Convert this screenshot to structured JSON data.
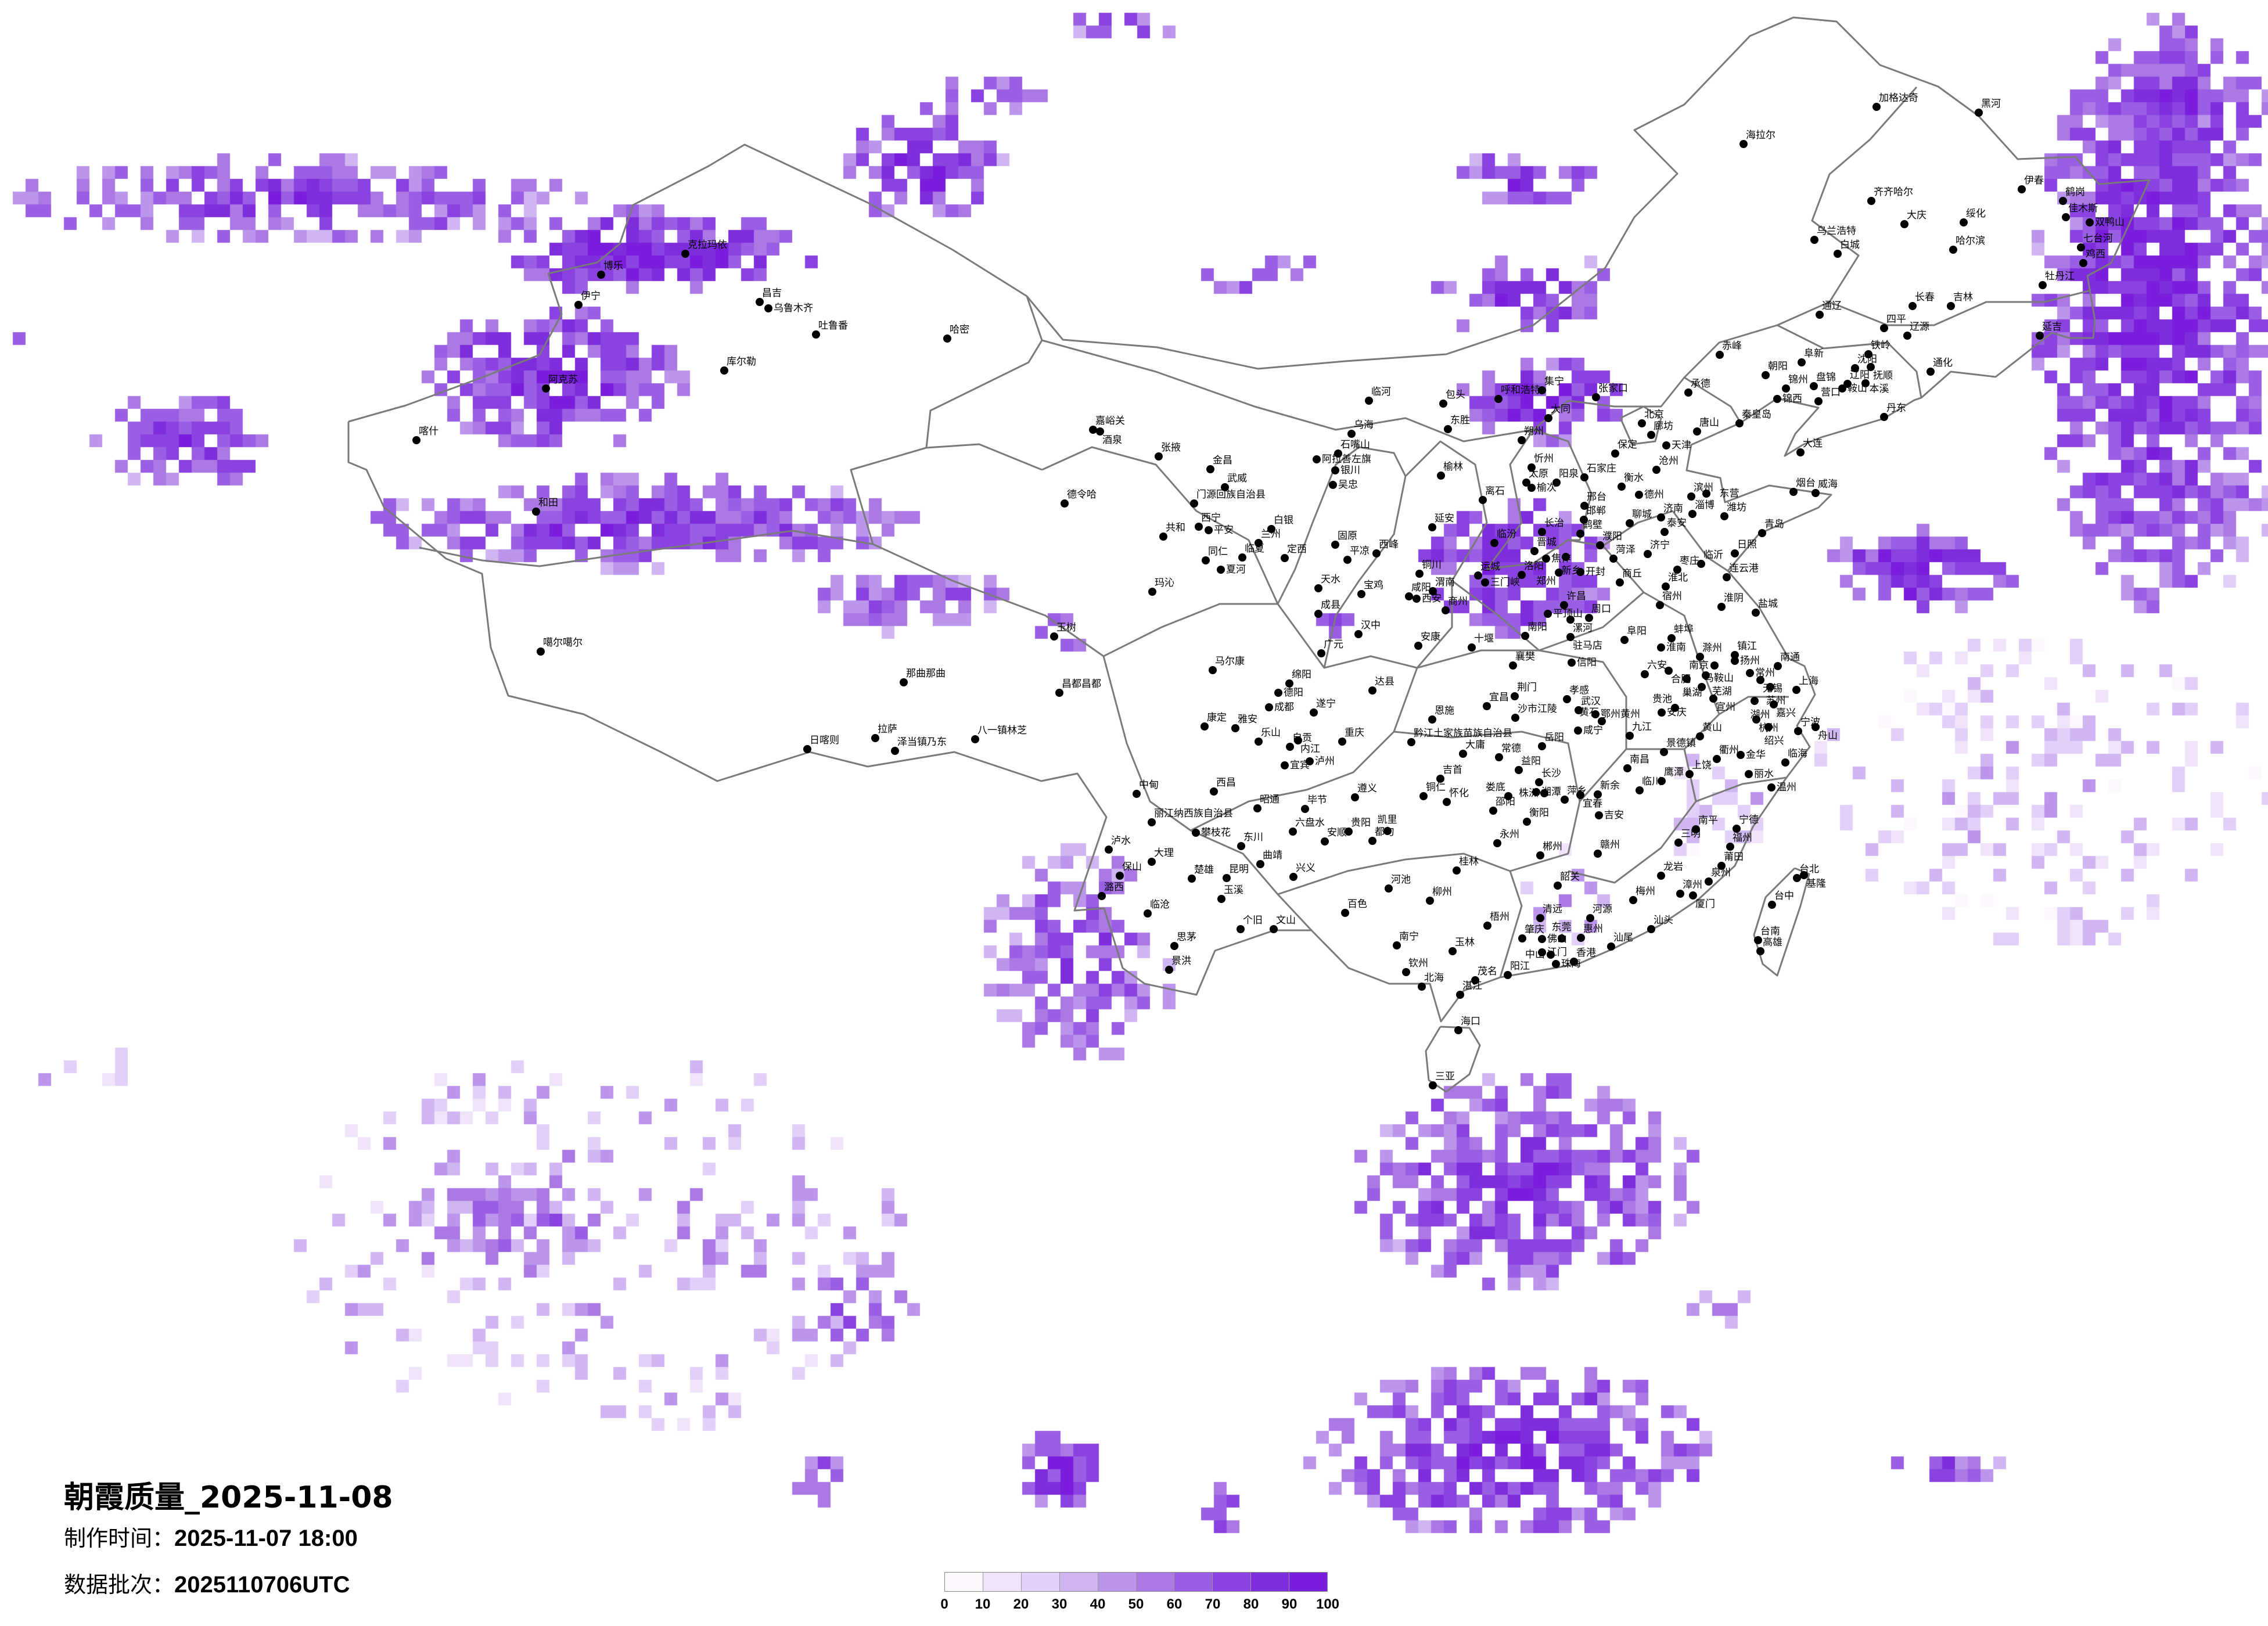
{
  "title": "朝霞质量_2025-11-08",
  "production_time": {
    "label": "制作时间：",
    "value": "2025-11-07 18:00"
  },
  "data_batch": {
    "label": "数据批次：",
    "value": "2025110706UTC"
  },
  "legend": {
    "ticks": [
      "0",
      "10",
      "20",
      "30",
      "40",
      "50",
      "60",
      "70",
      "80",
      "90",
      "100"
    ],
    "colors": [
      "#fdf8fd",
      "#f0e4fb",
      "#e3d0fa",
      "#d0b6f0",
      "#bb94ec",
      "#ab78e4",
      "#9a5ee4",
      "#8a42e0",
      "#7e2ddc",
      "#7a1ddc"
    ]
  },
  "boundary_color": "#7a7a7a",
  "cities": [
    "克拉玛依",
    "博乐",
    "伊宁",
    "昌吉",
    "乌鲁木齐",
    "吐鲁番",
    "哈密",
    "库尔勒",
    "阿克苏",
    "喀什",
    "和田",
    "噶尔噶尔",
    "那曲那曲",
    "拉萨",
    "泽当镇乃东",
    "日喀则",
    "八一镇林芝",
    "嘉峪关",
    "酒泉",
    "张掖",
    "金昌",
    "武威",
    "德令哈",
    "门源回族自治县",
    "西宁",
    "平安",
    "共和",
    "白银",
    "兰州",
    "临夏",
    "同仁",
    "夏河",
    "定西",
    "玛沁",
    "天水",
    "宝鸡",
    "成县",
    "汉中",
    "广元",
    "马尔康",
    "玉树",
    "昌都昌都",
    "绵阳",
    "德阳",
    "成都",
    "遂宁",
    "达县",
    "康定",
    "雅安",
    "乐山",
    "自贡",
    "内江",
    "重庆",
    "宜宾",
    "泸州",
    "临河",
    "包头",
    "呼和浩特",
    "东胜",
    "乌海",
    "石嘴山",
    "阿拉善左旗",
    "银川",
    "吴忠",
    "榆林",
    "固原",
    "平凉",
    "西峰",
    "延安",
    "离石",
    "铜川",
    "咸阳",
    "西安",
    "渭南",
    "商州",
    "安康",
    "十堰",
    "恩施",
    "黔江土家族苗族自治县",
    "临汾",
    "运城",
    "三门峡",
    "集宁",
    "张家口",
    "大同",
    "朔州",
    "忻州",
    "太原",
    "榆次",
    "阳泉",
    "石家庄",
    "北京",
    "廊坊",
    "天津",
    "唐山",
    "承德",
    "秦皇岛",
    "保定",
    "沧州",
    "衡水",
    "德州",
    "邢台",
    "邯郸",
    "长治",
    "鹤壁",
    "晋城",
    "焦作",
    "新乡",
    "濮阳",
    "洛阳",
    "郑州",
    "开封",
    "聊城",
    "济南",
    "泰安",
    "淄博",
    "滨州",
    "东营",
    "潍坊",
    "烟台",
    "威海",
    "青岛",
    "日照",
    "临沂",
    "枣庄",
    "济宁",
    "菏泽",
    "连云港",
    "商丘",
    "淮北",
    "宿州",
    "淮阴",
    "盐城",
    "大连",
    "丹东",
    "营口",
    "锦州",
    "锦西",
    "盘锦",
    "朝阳",
    "阜新",
    "沈阳",
    "抚顺",
    "辽阳",
    "鞍山",
    "本溪",
    "加格达奇",
    "海拉尔",
    "黑河",
    "伊春",
    "齐齐哈尔",
    "大庆",
    "绥化",
    "哈尔滨",
    "乌兰浩特",
    "白城",
    "鹤岗",
    "佳木斯",
    "双鸭山",
    "七台河",
    "鸡西",
    "牡丹江",
    "长春",
    "吉林",
    "通辽",
    "四平",
    "辽源",
    "延吉",
    "赤峰",
    "铁岭",
    "通化",
    "中甸",
    "西昌",
    "昭通",
    "毕节",
    "遵义",
    "铜仁",
    "怀化",
    "丽江纳西族自治县",
    "攀枝花",
    "六盘水",
    "贵阳",
    "安顺",
    "都匀",
    "凯里",
    "泸水",
    "大理",
    "东川",
    "曲靖",
    "保山",
    "楚雄",
    "昆明",
    "兴义",
    "潞西",
    "玉溪",
    "临沧",
    "个旧",
    "文山",
    "思茅",
    "景洪",
    "百色",
    "河池",
    "柳州",
    "桂林",
    "南宁",
    "玉林",
    "钦州",
    "北海",
    "梧州",
    "湛江",
    "茂名",
    "阳江",
    "海口",
    "三亚",
    "吉首",
    "益阳",
    "长沙",
    "湘潭",
    "株洲",
    "娄底",
    "邵阳",
    "衡阳",
    "永州",
    "郴州",
    "萍乡",
    "宜春",
    "新余",
    "吉安",
    "南昌",
    "赣州",
    "韶关",
    "清远",
    "河源",
    "肇庆",
    "佛山",
    "东莞",
    "惠州",
    "江门",
    "中山",
    "珠海",
    "香港",
    "汕尾",
    "梅州",
    "许昌",
    "平顶山",
    "漯河",
    "周口",
    "南阳",
    "驻马店",
    "阜阳",
    "蚌埠",
    "淮南",
    "襄樊",
    "信阳",
    "滁州",
    "镇江",
    "扬州",
    "南京",
    "六安",
    "合肥",
    "巢湖",
    "马鞍山",
    "芜湖",
    "常州",
    "无锡",
    "苏州",
    "南通",
    "上海",
    "宣州",
    "湖州",
    "嘉兴",
    "杭州",
    "绍兴",
    "宁波",
    "舟山",
    "荆门",
    "宜昌",
    "沙市江陵",
    "孝感",
    "武汉",
    "鄂州黄州",
    "黄石",
    "咸宁",
    "安庆",
    "贵池",
    "九江",
    "黄山",
    "景德镇",
    "衢州",
    "金华",
    "上饶",
    "丽水",
    "临海",
    "鹰潭",
    "临川",
    "温州",
    "岳阳",
    "常德",
    "大庸",
    "南平",
    "三明",
    "宁德",
    "福州",
    "莆田",
    "泉州",
    "龙岩",
    "漳州",
    "厦门",
    "汕头",
    "台北",
    "基隆",
    "台中",
    "台南",
    "高雄"
  ]
}
